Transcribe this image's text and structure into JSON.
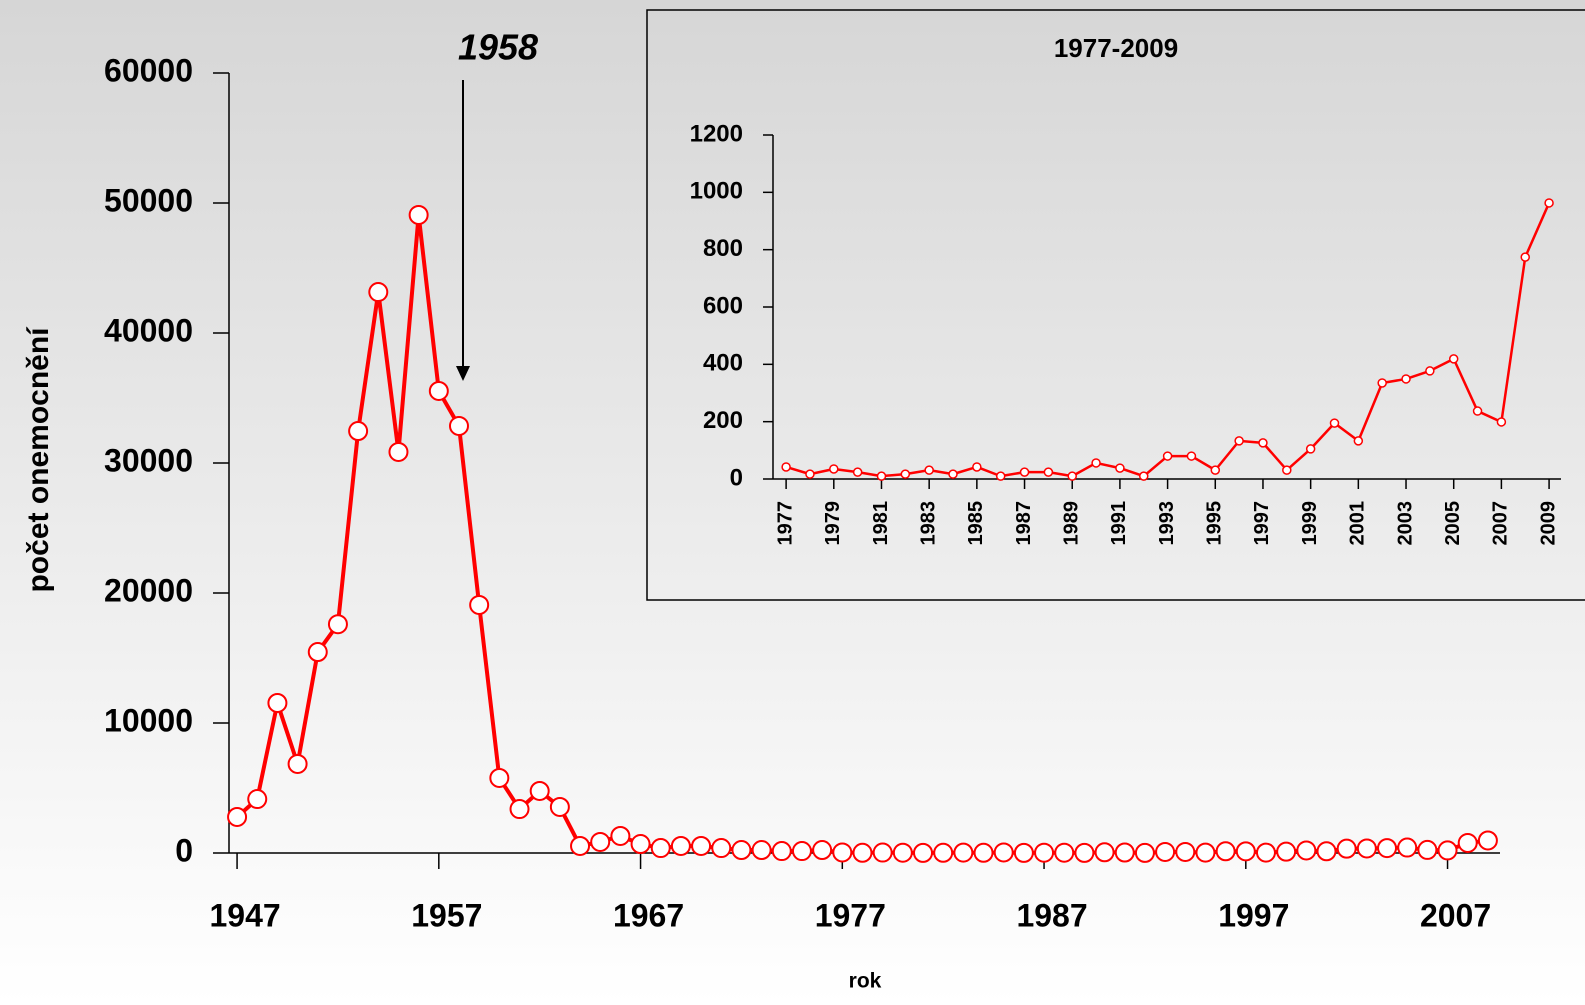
{
  "chart_data": [
    {
      "type": "line",
      "y_label": "počet onemocnění",
      "x_label": "rok",
      "annotation": "1958",
      "x": [
        1947,
        1948,
        1949,
        1950,
        1951,
        1952,
        1953,
        1954,
        1955,
        1956,
        1957,
        1958,
        1959,
        1960,
        1961,
        1962,
        1963,
        1964,
        1965,
        1966,
        1967,
        1968,
        1969,
        1970,
        1971,
        1972,
        1973,
        1974,
        1975,
        1976,
        1977,
        1978,
        1979,
        1980,
        1981,
        1982,
        1983,
        1984,
        1985,
        1986,
        1987,
        1988,
        1989,
        1990,
        1991,
        1992,
        1993,
        1994,
        1995,
        1996,
        1997,
        1998,
        1999,
        2000,
        2001,
        2002,
        2003,
        2004,
        2005,
        2006,
        2007,
        2008,
        2009
      ],
      "series": [
        {
          "color": "#ff0000",
          "values": [
            2770,
            4150,
            11540,
            6850,
            15460,
            17600,
            32460,
            43150,
            30850,
            49080,
            35540,
            32850,
            19080,
            5770,
            3380,
            4770,
            3540,
            540,
            850,
            1310,
            690,
            380,
            540,
            540,
            380,
            230,
            230,
            150,
            150,
            230,
            42,
            17,
            35,
            24,
            10,
            17,
            31,
            17,
            42,
            10,
            24,
            24,
            10,
            56,
            38,
            10,
            80,
            80,
            31,
            133,
            126,
            31,
            105,
            195,
            133,
            335,
            349,
            377,
            419,
            237,
            199,
            774,
            963
          ]
        }
      ],
      "xlim": [
        1946.6,
        2009.6
      ],
      "xticks": [
        1947,
        1957,
        1967,
        1977,
        1987,
        1997,
        2007
      ],
      "ylim": [
        0,
        60000
      ],
      "yticks": [
        0,
        10000,
        20000,
        30000,
        40000,
        50000,
        60000
      ]
    },
    {
      "type": "line",
      "title": "1977-2009",
      "x": [
        1977,
        1978,
        1979,
        1980,
        1981,
        1982,
        1983,
        1984,
        1985,
        1986,
        1987,
        1988,
        1989,
        1990,
        1991,
        1992,
        1993,
        1994,
        1995,
        1996,
        1997,
        1998,
        1999,
        2000,
        2001,
        2002,
        2003,
        2004,
        2005,
        2006,
        2007,
        2008,
        2009
      ],
      "series": [
        {
          "color": "#ff0000",
          "values": [
            42,
            17,
            35,
            24,
            10,
            17,
            31,
            17,
            42,
            10,
            24,
            24,
            10,
            56,
            38,
            10,
            80,
            80,
            31,
            133,
            126,
            31,
            105,
            195,
            133,
            335,
            349,
            377,
            419,
            237,
            199,
            774,
            963
          ]
        }
      ],
      "xlim": [
        1976.45,
        2009.5
      ],
      "xticks": [
        1977,
        1979,
        1981,
        1983,
        1985,
        1987,
        1989,
        1991,
        1993,
        1995,
        1997,
        1999,
        2001,
        2003,
        2005,
        2007,
        2009
      ],
      "ylim": [
        0,
        1200
      ],
      "yticks": [
        0,
        200,
        400,
        600,
        800,
        1000,
        1200
      ]
    }
  ]
}
